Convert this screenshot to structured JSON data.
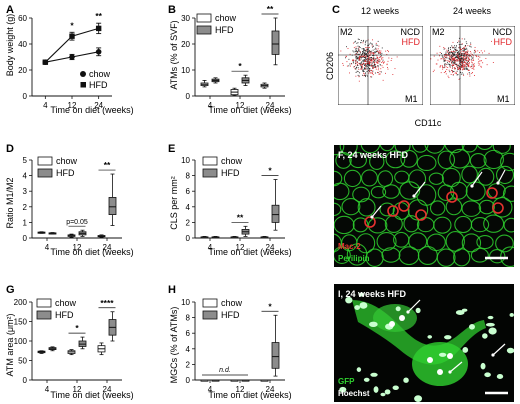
{
  "colors": {
    "chow": "#ffffff",
    "hfd": "#8c8c8c",
    "axis": "#111111",
    "flow_ncd": "#222222",
    "flow_hfd": "#e0262b",
    "micro_green": "#2fd12f",
    "micro_red": "#e6322f"
  },
  "panelA": {
    "letter": "A",
    "type": "line",
    "ylabel": "Body weight (g)",
    "xlabel": "Time on diet (weeks)",
    "yticks": [
      "0",
      "20",
      "40",
      "60"
    ],
    "ylim": [
      0,
      60
    ],
    "categories": [
      "4",
      "12",
      "24"
    ],
    "series": [
      {
        "name": "chow",
        "marker": "circle",
        "values": [
          26,
          30,
          34
        ],
        "err": [
          1,
          2,
          3
        ]
      },
      {
        "name": "HFD",
        "marker": "square",
        "values": [
          26,
          46,
          52
        ],
        "err": [
          1,
          3,
          4
        ]
      }
    ],
    "annotations": [
      {
        "at": "12",
        "text": "*"
      },
      {
        "at": "24",
        "text": "**"
      }
    ]
  },
  "panelB": {
    "letter": "B",
    "type": "box",
    "ylabel": "ATMs (% of SVF)",
    "xlabel": "Time on diet (weeks)",
    "yticks": [
      "0",
      "10",
      "20",
      "30"
    ],
    "ylim": [
      0,
      30
    ],
    "categories": [
      "4",
      "12",
      "24"
    ],
    "series": [
      {
        "name": "chow",
        "boxes": [
          [
            3.5,
            4,
            4.5,
            5,
            6
          ],
          [
            0.2,
            0.5,
            1.5,
            2.5,
            3
          ],
          [
            3,
            3.5,
            4,
            4.5,
            5
          ]
        ]
      },
      {
        "name": "HFD",
        "boxes": [
          [
            5,
            5.5,
            6,
            6.5,
            7
          ],
          [
            4,
            5,
            6,
            7,
            8
          ],
          [
            12,
            16,
            20,
            25,
            30
          ]
        ]
      }
    ],
    "annotations": [
      {
        "at": "12",
        "text": "*"
      },
      {
        "at": "24",
        "text": "**"
      }
    ]
  },
  "panelC": {
    "letter": "C",
    "type": "scatter",
    "titles": [
      "12 weeks",
      "24 weeks"
    ],
    "ylabel": "CD206",
    "xlabel": "CD11c",
    "legend": [
      "NCD",
      "HFD"
    ],
    "gates": [
      "M2",
      "M1"
    ]
  },
  "panelD": {
    "letter": "D",
    "type": "box",
    "ylabel": "Ratio M1/M2",
    "xlabel": "Time on diet (weeks)",
    "yticks": [
      "0",
      "1",
      "2",
      "3",
      "4",
      "5"
    ],
    "ylim": [
      0,
      5
    ],
    "categories": [
      "4",
      "12",
      "24"
    ],
    "series": [
      {
        "name": "chow",
        "boxes": [
          [
            0.3,
            0.33,
            0.35,
            0.38,
            0.4
          ],
          [
            0.05,
            0.1,
            0.15,
            0.2,
            0.25
          ],
          [
            0.05,
            0.08,
            0.12,
            0.16,
            0.2
          ]
        ]
      },
      {
        "name": "HFD",
        "boxes": [
          [
            0.25,
            0.28,
            0.3,
            0.33,
            0.35
          ],
          [
            0.1,
            0.2,
            0.3,
            0.4,
            0.5
          ],
          [
            0.8,
            1.5,
            2.0,
            2.6,
            4.1
          ]
        ]
      }
    ],
    "annotations": [
      {
        "at": "12",
        "text": "p=0.05"
      },
      {
        "at": "24",
        "text": "**"
      }
    ]
  },
  "panelE": {
    "letter": "E",
    "type": "box",
    "ylabel": "CLS per mm²",
    "xlabel": "Time on diet (weeks)",
    "yticks": [
      "0",
      "2",
      "4",
      "6",
      "8",
      "10"
    ],
    "ylim": [
      0,
      10
    ],
    "categories": [
      "4",
      "12",
      "24"
    ],
    "series": [
      {
        "name": "chow",
        "boxes": [
          [
            0,
            0.05,
            0.1,
            0.15,
            0.2
          ],
          [
            0,
            0.05,
            0.1,
            0.15,
            0.2
          ],
          [
            0,
            0.05,
            0.1,
            0.15,
            0.2
          ]
        ]
      },
      {
        "name": "HFD",
        "boxes": [
          [
            0,
            0.05,
            0.1,
            0.15,
            0.2
          ],
          [
            0.2,
            0.5,
            0.8,
            1.1,
            1.5
          ],
          [
            1.0,
            2.0,
            3.0,
            4.2,
            7.5
          ]
        ]
      }
    ],
    "annotations": [
      {
        "at": "12",
        "text": "**"
      },
      {
        "at": "24",
        "text": "*"
      }
    ]
  },
  "panelF": {
    "letter": "F",
    "title": "F, 24 weeks HFD",
    "stain1": "Mac-2",
    "stain2": "Perilipin"
  },
  "panelG": {
    "letter": "G",
    "type": "box",
    "ylabel": "ATM area (μm²)",
    "xlabel": "Time on diet (weeks)",
    "yticks": [
      "0",
      "50",
      "100",
      "150",
      "200"
    ],
    "ylim": [
      0,
      200
    ],
    "categories": [
      "4",
      "12",
      "24"
    ],
    "series": [
      {
        "name": "chow",
        "boxes": [
          [
            68,
            70,
            72,
            74,
            75
          ],
          [
            65,
            68,
            72,
            75,
            78
          ],
          [
            65,
            72,
            80,
            88,
            95
          ]
        ]
      },
      {
        "name": "HFD",
        "boxes": [
          [
            75,
            78,
            80,
            83,
            85
          ],
          [
            80,
            86,
            92,
            100,
            110
          ],
          [
            100,
            115,
            135,
            155,
            175
          ]
        ]
      }
    ],
    "annotations": [
      {
        "at": "12",
        "text": "*"
      },
      {
        "at": "24",
        "text": "****"
      }
    ]
  },
  "panelH": {
    "letter": "H",
    "type": "box",
    "ylabel": "MGCs (% of ATMs)",
    "xlabel": "Time on diet (weeks)",
    "yticks": [
      "0",
      "2",
      "4",
      "6",
      "8",
      "10"
    ],
    "ylim": [
      0,
      10
    ],
    "categories": [
      "4",
      "12",
      "24"
    ],
    "series": [
      {
        "name": "chow",
        "boxes": [
          [
            0,
            0,
            0,
            0,
            0
          ],
          [
            0,
            0,
            0,
            0,
            0
          ],
          [
            0,
            0,
            0,
            0,
            0
          ]
        ]
      },
      {
        "name": "HFD",
        "boxes": [
          [
            0,
            0,
            0,
            0,
            0
          ],
          [
            0,
            0,
            0,
            0,
            0
          ],
          [
            0.5,
            1.5,
            3.0,
            4.8,
            8.3
          ]
        ]
      }
    ],
    "annotations": [
      {
        "at": "4-12",
        "text": "n.d."
      },
      {
        "at": "24",
        "text": "*"
      }
    ]
  },
  "panelI": {
    "letter": "I",
    "title": "I, 24 weeks HFD",
    "stain1": "GFP",
    "stain2": "Hoechst"
  }
}
